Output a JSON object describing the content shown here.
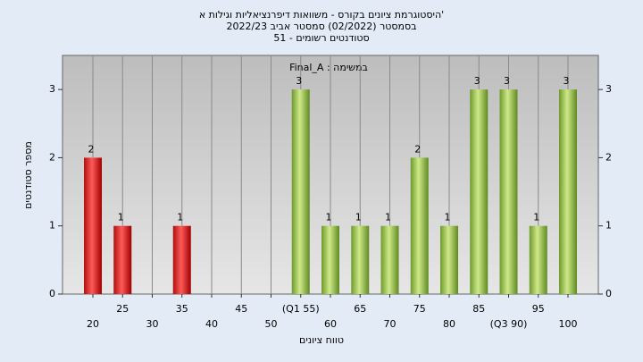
{
  "chart_data": {
    "type": "bar",
    "title": "'היסטוגרמת ציונים בקורס - משוואות דיפרנציאליות וגילות א",
    "subtitle": [
      "בסמסטר  (02/2022)  סמסטר אביב 2022/23",
      "סטודנטים רשומים - 51"
    ],
    "legend": "Final_A : במשימה",
    "x_label": "טווח ציונים",
    "y_label": "מספר סטודנטים",
    "categories": [
      "20",
      "25",
      "30",
      "35",
      "40",
      "45",
      "50",
      "(Q1 55)",
      "60",
      "65",
      "70",
      "75",
      "80",
      "85",
      "(Q3 90)",
      "95",
      "100"
    ],
    "values": [
      2,
      1,
      0,
      1,
      0,
      0,
      0,
      3,
      1,
      1,
      1,
      2,
      1,
      3,
      3,
      1,
      3
    ],
    "colors": [
      "red",
      "red",
      "red",
      "red",
      "red",
      "red",
      "red",
      "green",
      "green",
      "green",
      "green",
      "green",
      "green",
      "green",
      "green",
      "green",
      "green"
    ],
    "ylim": [
      0,
      3.5
    ],
    "yticks": [
      0,
      1,
      2,
      3
    ],
    "grid": true
  }
}
